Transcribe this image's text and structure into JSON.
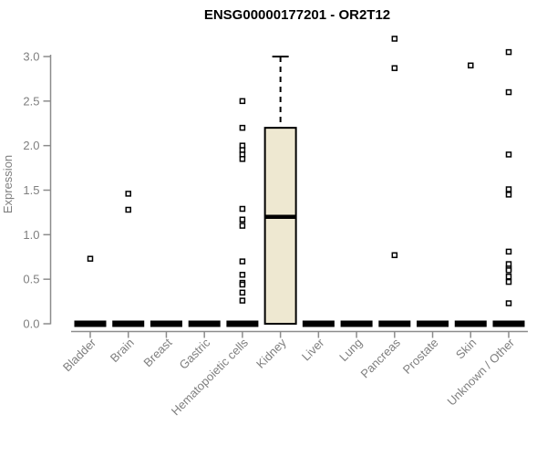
{
  "chart_data": {
    "type": "boxplot",
    "title": "ENSG00000177201 - OR2T12",
    "ylabel": "Expression",
    "xlabel": "",
    "ylim": [
      0,
      3.25
    ],
    "yticks": [
      0.0,
      0.5,
      1.0,
      1.5,
      2.0,
      2.5,
      3.0
    ],
    "grid": false,
    "legend": "none",
    "axis_color": "#8c8c8c",
    "tick_label_color": "#7f7f7f",
    "title_color": "#000000",
    "box_fill_color": "#eee8d1",
    "box_stroke_color": "#000000",
    "collapsed_box_color": "#000000",
    "outlier_fill_color": "#ffffff",
    "outlier_stroke_color": "#000000",
    "categories": [
      "Bladder",
      "Brain",
      "Breast",
      "Gastric",
      "Hematopoietic cells",
      "Kidney",
      "Liver",
      "Lung",
      "Pancreas",
      "Prostate",
      "Skin",
      "Unknown / Other"
    ],
    "boxes": [
      {
        "category": "Bladder",
        "q1": 0,
        "median": 0,
        "q3": 0,
        "whisker_low": 0,
        "whisker_high": 0,
        "outliers": [
          0.73
        ]
      },
      {
        "category": "Brain",
        "q1": 0,
        "median": 0,
        "q3": 0,
        "whisker_low": 0,
        "whisker_high": 0,
        "outliers": [
          1.46,
          1.28
        ]
      },
      {
        "category": "Breast",
        "q1": 0,
        "median": 0,
        "q3": 0,
        "whisker_low": 0,
        "whisker_high": 0,
        "outliers": []
      },
      {
        "category": "Gastric",
        "q1": 0,
        "median": 0,
        "q3": 0,
        "whisker_low": 0,
        "whisker_high": 0,
        "outliers": []
      },
      {
        "category": "Hematopoietic cells",
        "q1": 0,
        "median": 0,
        "q3": 0,
        "whisker_low": 0,
        "whisker_high": 0,
        "outliers": [
          2.5,
          2.2,
          2.0,
          1.95,
          1.9,
          1.85,
          1.29,
          1.17,
          1.1,
          0.7,
          0.55,
          0.46,
          0.44,
          0.35,
          0.26
        ]
      },
      {
        "category": "Kidney",
        "q1": 0,
        "median": 1.2,
        "q3": 2.2,
        "whisker_low": 0,
        "whisker_high": 3.0,
        "outliers": []
      },
      {
        "category": "Liver",
        "q1": 0,
        "median": 0,
        "q3": 0,
        "whisker_low": 0,
        "whisker_high": 0,
        "outliers": []
      },
      {
        "category": "Lung",
        "q1": 0,
        "median": 0,
        "q3": 0,
        "whisker_low": 0,
        "whisker_high": 0,
        "outliers": []
      },
      {
        "category": "Pancreas",
        "q1": 0,
        "median": 0,
        "q3": 0,
        "whisker_low": 0,
        "whisker_high": 0,
        "outliers": [
          3.2,
          2.87,
          0.77
        ]
      },
      {
        "category": "Prostate",
        "q1": 0,
        "median": 0,
        "q3": 0,
        "whisker_low": 0,
        "whisker_high": 0,
        "outliers": []
      },
      {
        "category": "Skin",
        "q1": 0,
        "median": 0,
        "q3": 0,
        "whisker_low": 0,
        "whisker_high": 0,
        "outliers": [
          2.9
        ]
      },
      {
        "category": "Unknown / Other",
        "q1": 0,
        "median": 0,
        "q3": 0,
        "whisker_low": 0,
        "whisker_high": 0,
        "outliers": [
          3.05,
          2.6,
          1.9,
          1.51,
          1.45,
          0.81,
          0.67,
          0.62,
          0.6,
          0.53,
          0.47,
          0.23
        ]
      }
    ]
  }
}
